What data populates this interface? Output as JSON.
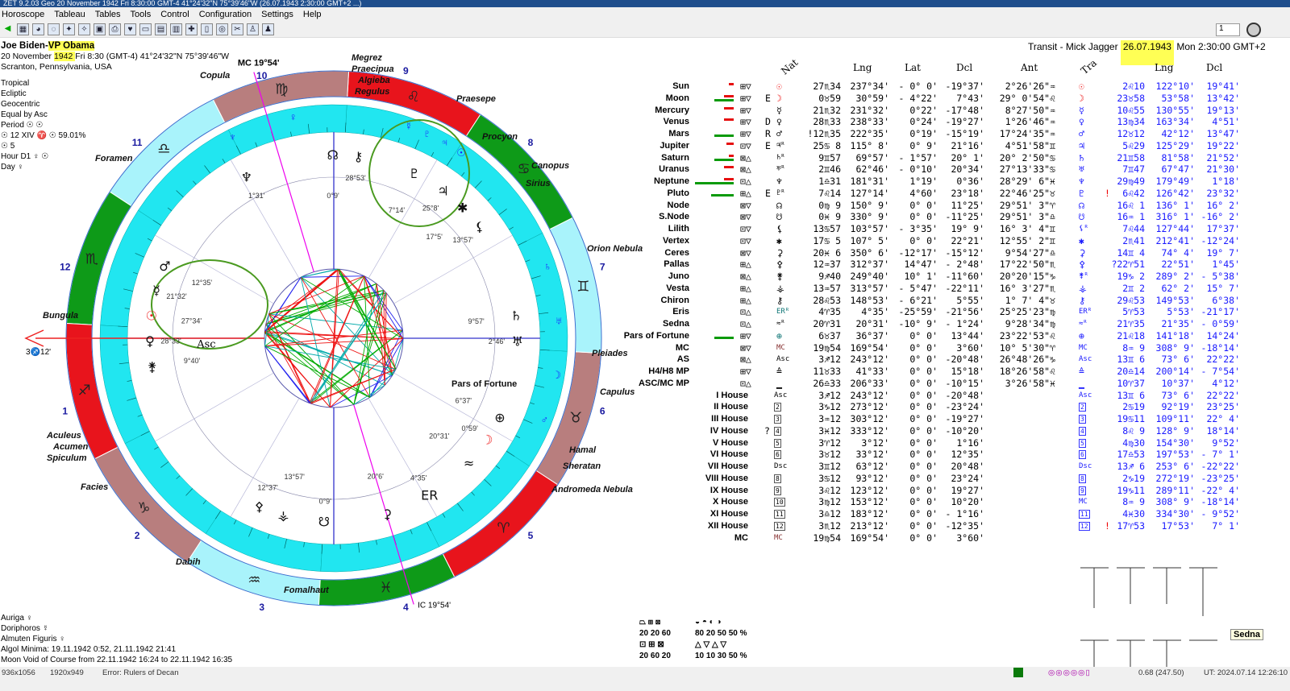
{
  "window": {
    "title": "ZET 9.2.03 Geo  20 November 1942 Fri  8:30:00 GMT-4 41°24'32\"N 75°39'46\"W  (26.07.1943  2:30:00 GMT+2 ...)"
  },
  "menu": [
    "Horoscope",
    "Tableau",
    "Tables",
    "Tools",
    "Control",
    "Configuration",
    "Settings",
    "Help"
  ],
  "toolbar_icons": [
    "back-icon",
    "table-icon",
    "globe-icon",
    "wheel-icon",
    "cosmos-icon",
    "stars-icon",
    "map-icon",
    "print-icon",
    "heart-icon",
    "window-icon",
    "grid-icon",
    "chart-icon",
    "transit-icon",
    "notes-icon",
    "aspect-icon",
    "tools-icon",
    "person-icon",
    "run-icon"
  ],
  "toolbar_right": {
    "spin_value": "1"
  },
  "natal": {
    "name_a": "Joe Biden-",
    "name_b": "VP Obama",
    "date_a": "20 November ",
    "date_b": "1942 ",
    "date_rest": " Fri   8:30 (GMT-4) 41°24'32\"N  75°39'46\"W",
    "place": "Scranton, Pennsylvania, USA"
  },
  "settings": [
    "Tropical",
    "Ecliptic",
    "Geocentric",
    "Equal by Asc",
    "Period ☉ ☉",
    "☉  12 XIV ♈ ☉ 59.01%",
    "☉  5",
    "Hour D1 ♀ ☉",
    "Day ♀"
  ],
  "transit": {
    "label": "Transit - Mick Jagger ",
    "date": "26.07.1943",
    "rest": "  Mon  2:30:00 GMT+2"
  },
  "columns": {
    "nat": "Nat",
    "lng": "Lng",
    "lat": "Lat",
    "dcl": "Dcl",
    "ant": "Ant",
    "tra": "Tra",
    "tlng": "Lng",
    "tdcl": "Dcl"
  },
  "colors": {
    "fire": "#e8141c",
    "earth": "#b87e7e",
    "air": "#a9f3fb",
    "water": "#0e9a18",
    "cyan_ring": "#21e6f0",
    "transit_text": "#1a1aff"
  },
  "signs": [
    "♈",
    "♉",
    "♊",
    "♋",
    "♌",
    "♍",
    "♎",
    "♏",
    "♐",
    "♑",
    "♒",
    "♓"
  ],
  "rows": [
    {
      "name": "Sun",
      "bar": [
        0,
        2
      ],
      "dig": "⊞▽",
      "flag": "",
      "g": "☉",
      "pos": "27♏34",
      "lng": "237°34'",
      "lat": "- 0° 0'",
      "dcl": "-19°37'",
      "ant": "2°26'26\"♒",
      "deg": 237.57
    },
    {
      "name": "Moon",
      "bar": [
        6,
        4
      ],
      "dig": "⊞▽",
      "flag": "E",
      "g": "☽",
      "pos": " 0♉59",
      "lng": "30°59'",
      "lat": "- 4°22'",
      "dcl": "7°43'",
      "ant": "29° 0'54\"♌",
      "deg": 30.98
    },
    {
      "name": "Mercury",
      "bar": [
        0,
        4
      ],
      "dig": "⊞▽",
      "flag": "",
      "g": "☿",
      "pos": "21♏32",
      "lng": "231°32'",
      "lat": "0°22'",
      "dcl": "-17°48'",
      "ant": "8°27'50\"♒",
      "deg": 231.53
    },
    {
      "name": "Venus",
      "bar": [
        0,
        4
      ],
      "dig": "⊞▽",
      "flag": "D",
      "g": "♀",
      "pos": "28♏33",
      "lng": "238°33'",
      "lat": "0°24'",
      "dcl": "-19°27'",
      "ant": "1°26'46\"♒",
      "deg": 238.55
    },
    {
      "name": "Mars",
      "bar": [
        6,
        0
      ],
      "dig": "⊞▽",
      "flag": "R",
      "g": "♂",
      "pos": "!12♏35",
      "lng": "222°35'",
      "lat": "0°19'",
      "dcl": "-15°19'",
      "ant": "17°24'35\"♒",
      "deg": 222.58
    },
    {
      "name": "Jupiter",
      "bar": [
        0,
        3
      ],
      "dig": "⊡▽",
      "flag": "E",
      "g": "♃ᴿ",
      "pos": "25♋ 8",
      "lng": "115° 8'",
      "lat": "0° 9'",
      "dcl": "21°16'",
      "ant": "4°51'58\"♊",
      "deg": 115.13
    },
    {
      "name": "Saturn",
      "bar": [
        6,
        2
      ],
      "dig": "⊠△",
      "flag": "",
      "g": "♄ᴿ",
      "pos": " 9♊57",
      "lng": "69°57'",
      "lat": "- 1°57'",
      "dcl": "20° 1'",
      "ant": "20° 2'50\"♋",
      "deg": 69.95
    },
    {
      "name": "Uranus",
      "bar": [
        0,
        4
      ],
      "dig": "⊠△",
      "flag": "",
      "g": "♅ᴿ",
      "pos": " 2♊46",
      "lng": "62°46'",
      "lat": "- 0°10'",
      "dcl": "20°34'",
      "ant": "27°13'33\"♋",
      "deg": 62.77
    },
    {
      "name": "Neptune",
      "bar": [
        12,
        4
      ],
      "dig": "⊡△",
      "flag": "",
      "g": "♆",
      "pos": " 1♎31",
      "lng": "181°31'",
      "lat": "1°19'",
      "dcl": "0°36'",
      "ant": "28°29' 6\"♓",
      "deg": 181.52
    },
    {
      "name": "Pluto",
      "bar": [
        7,
        0
      ],
      "dig": "⊞△",
      "flag": "E",
      "g": "♇ᴿ",
      "pos": " 7♌14",
      "lng": "127°14'",
      "lat": "4°60'",
      "dcl": "23°18'",
      "ant": "22°46'25\"♉",
      "deg": 127.23
    },
    {
      "name": "Node",
      "bar": [
        0,
        0
      ],
      "dig": "⊠▽",
      "flag": "",
      "g": "☊",
      "pos": " 0♍ 9",
      "lng": "150° 9'",
      "lat": "0° 0'",
      "dcl": "11°25'",
      "ant": "29°51' 3\"♈",
      "deg": 150.15
    },
    {
      "name": "S.Node",
      "bar": [
        0,
        0
      ],
      "dig": "⊠▽",
      "flag": "",
      "g": "☋",
      "pos": " 0♓ 9",
      "lng": "330° 9'",
      "lat": "0° 0'",
      "dcl": "-11°25'",
      "ant": "29°51' 3\"♎",
      "deg": 330.15
    },
    {
      "name": "Lilith",
      "bar": [
        0,
        0
      ],
      "dig": "⊡▽",
      "flag": "",
      "g": "⚸",
      "pos": "13♋57",
      "lng": "103°57'",
      "lat": "- 3°35'",
      "dcl": "19° 9'",
      "ant": "16° 3' 4\"♊",
      "deg": 103.95
    },
    {
      "name": "Vertex",
      "bar": [
        0,
        0
      ],
      "dig": "⊡▽",
      "flag": "",
      "g": "✱",
      "pos": "17♋ 5",
      "lng": "107° 5'",
      "lat": "0° 0'",
      "dcl": "22°21'",
      "ant": "12°55' 2\"♊",
      "deg": 107.08
    },
    {
      "name": "Ceres",
      "bar": [
        0,
        0
      ],
      "dig": "⊠▽",
      "flag": "",
      "g": "⚳",
      "pos": "20♓ 6",
      "lng": "350° 6'",
      "lat": "-12°17'",
      "dcl": "-15°12'",
      "ant": "9°54'27\"♎",
      "deg": 350.1
    },
    {
      "name": "Pallas",
      "bar": [
        0,
        0
      ],
      "dig": "⊞△",
      "flag": "",
      "g": "⚴",
      "pos": "12♒37",
      "lng": "312°37'",
      "lat": "14°47'",
      "dcl": "- 2°48'",
      "ant": "17°22'50\"♏",
      "deg": 312.62
    },
    {
      "name": "Juno",
      "bar": [
        0,
        0
      ],
      "dig": "⊠△",
      "flag": "",
      "g": "⚵",
      "pos": " 9♐40",
      "lng": "249°40'",
      "lat": "10° 1'",
      "dcl": "-11°60'",
      "ant": "20°20'15\"♑",
      "deg": 249.67
    },
    {
      "name": "Vesta",
      "bar": [
        0,
        0
      ],
      "dig": "⊞△",
      "flag": "",
      "g": "⚶",
      "pos": "13♒57",
      "lng": "313°57'",
      "lat": "- 5°47'",
      "dcl": "-22°11'",
      "ant": "16° 3'27\"♏",
      "deg": 313.95
    },
    {
      "name": "Chiron",
      "bar": [
        0,
        0
      ],
      "dig": "⊞△",
      "flag": "",
      "g": "⚷",
      "pos": "28♌53",
      "lng": "148°53'",
      "lat": "- 6°21'",
      "dcl": "5°55'",
      "ant": "1° 7' 4\"♉",
      "deg": 148.88
    },
    {
      "name": "Eris",
      "bar": [
        0,
        0
      ],
      "dig": "⊡△",
      "flag": "",
      "g": "ERᴿ",
      "pos": " 4♈35",
      "lng": "4°35'",
      "lat": "-25°59'",
      "dcl": "-21°56'",
      "ant": "25°25'23\"♍",
      "deg": 4.58
    },
    {
      "name": "Sedna",
      "bar": [
        0,
        0
      ],
      "dig": "⊡△",
      "flag": "",
      "g": "≈ᴿ",
      "pos": "20♈31",
      "lng": "20°31'",
      "lat": "-10° 9'",
      "dcl": "- 1°24'",
      "ant": "9°28'34\"♍",
      "deg": 20.52
    },
    {
      "name": "Pars of Fortune",
      "bar": [
        6,
        0
      ],
      "dig": "⊞▽",
      "flag": "",
      "g": "⊕",
      "pos": " 6♉37",
      "lng": "36°37'",
      "lat": "0° 0'",
      "dcl": "13°44'",
      "ant": "23°22'53\"♌",
      "deg": 36.62
    },
    {
      "name": "MC",
      "bar": [
        0,
        0
      ],
      "dig": "⊠▽",
      "flag": "",
      "g": "MC",
      "pos": "19♍54",
      "lng": "169°54'",
      "lat": "0° 0'",
      "dcl": "3°60'",
      "ant": "10° 5'30\"♈"
    },
    {
      "name": "AS",
      "bar": [
        0,
        0
      ],
      "dig": "⊠△",
      "flag": "",
      "g": "Asc",
      "pos": " 3♐12",
      "lng": "243°12'",
      "lat": "0° 0'",
      "dcl": "-20°48'",
      "ant": "26°48'26\"♑"
    },
    {
      "name": "H4/H8 MP",
      "bar": [
        0,
        0
      ],
      "dig": "⊞▽",
      "flag": "",
      "g": "≙",
      "pos": "11♉33",
      "lng": "41°33'",
      "lat": "0° 0'",
      "dcl": "15°18'",
      "ant": "18°26'58\"♌"
    },
    {
      "name": "ASC/MC MP",
      "bar": [
        0,
        0
      ],
      "dig": "⊡△",
      "flag": "",
      "g": "▁",
      "pos": "26♎33",
      "lng": "206°33'",
      "lat": "0° 0'",
      "dcl": "-10°15'",
      "ant": "3°26'58\"♓"
    },
    {
      "name": "I House",
      "g": "Asc",
      "pos": " 3♐12",
      "lng": "243°12'",
      "lat": "0° 0'",
      "dcl": "-20°48'"
    },
    {
      "name": "II House",
      "g": "2",
      "pos": " 3♑12",
      "lng": "273°12'",
      "lat": "0° 0'",
      "dcl": "-23°24'"
    },
    {
      "name": "III House",
      "g": "3",
      "pos": " 3♒12",
      "lng": "303°12'",
      "lat": "0° 0'",
      "dcl": "-19°27'"
    },
    {
      "name": "IV House",
      "g": "4",
      "flag": "?",
      "pos": " 3♓12",
      "lng": "333°12'",
      "lat": "0° 0'",
      "dcl": "-10°20'"
    },
    {
      "name": "V House",
      "g": "5",
      "pos": " 3♈12",
      "lng": "3°12'",
      "lat": "0° 0'",
      "dcl": "1°16'"
    },
    {
      "name": "VI House",
      "g": "6",
      "pos": " 3♉12",
      "lng": "33°12'",
      "lat": "0° 0'",
      "dcl": "12°35'"
    },
    {
      "name": "VII House",
      "g": "Dsc",
      "pos": " 3♊12",
      "lng": "63°12'",
      "lat": "0° 0'",
      "dcl": "20°48'"
    },
    {
      "name": "VIII House",
      "g": "8",
      "pos": " 3♋12",
      "lng": "93°12'",
      "lat": "0° 0'",
      "dcl": "23°24'"
    },
    {
      "name": "IX House",
      "g": "9",
      "pos": " 3♌12",
      "lng": "123°12'",
      "lat": "0° 0'",
      "dcl": "19°27'"
    },
    {
      "name": "X House",
      "g": "10",
      "pos": " 3♍12",
      "lng": "153°12'",
      "lat": "0° 0'",
      "dcl": "10°20'"
    },
    {
      "name": "XI House",
      "g": "11",
      "pos": " 3♎12",
      "lng": "183°12'",
      "lat": "0° 0'",
      "dcl": "- 1°16'"
    },
    {
      "name": "XII House",
      "g": "12",
      "pos": " 3♏12",
      "lng": "213°12'",
      "lat": "0° 0'",
      "dcl": "-12°35'"
    },
    {
      "name": "MC",
      "g": "MC",
      "pos": "19♍54",
      "lng": "169°54'",
      "lat": "0° 0'",
      "dcl": "3°60'"
    }
  ],
  "transit_rows": [
    {
      "g": "☉",
      "pos": " 2♌10",
      "lng": "122°10'",
      "dcl": "19°41'",
      "deg": 122.17
    },
    {
      "g": "☽",
      "pos": "23♉58",
      "lng": "53°58'",
      "dcl": "13°42'",
      "deg": 53.97
    },
    {
      "g": "☿",
      "pos": "10♌55",
      "lng": "130°55'",
      "dcl": "19°13'",
      "deg": 130.92
    },
    {
      "g": "♀",
      "pos": "13♍34",
      "lng": "163°34'",
      "dcl": "4°51'",
      "deg": 163.57
    },
    {
      "g": "♂",
      "pos": "12♉12",
      "lng": "42°12'",
      "dcl": "13°47'",
      "deg": 42.2
    },
    {
      "g": "♃",
      "pos": " 5♌29",
      "lng": "125°29'",
      "dcl": "19°22'",
      "deg": 125.48
    },
    {
      "g": "♄",
      "pos": "21♊58",
      "lng": "81°58'",
      "dcl": "21°52'",
      "deg": 81.97
    },
    {
      "g": "♅",
      "pos": " 7♊47",
      "lng": "67°47'",
      "dcl": "21°30'",
      "deg": 67.78
    },
    {
      "g": "♆",
      "pos": "29♍49",
      "lng": "179°49'",
      "dcl": "1°18'",
      "deg": 179.82
    },
    {
      "g": "♇",
      "mark": "!",
      "pos": " 6♌42",
      "lng": "126°42'",
      "dcl": "23°32'",
      "deg": 126.7
    },
    {
      "g": "☊",
      "pos": "16♌ 1",
      "lng": "136° 1'",
      "dcl": "16° 2'"
    },
    {
      "g": "☋",
      "pos": "16♒ 1",
      "lng": "316° 1'",
      "dcl": "-16° 2'"
    },
    {
      "g": "⚸ᴿ",
      "pos": " 7♌44",
      "lng": "127°44'",
      "dcl": "17°37'"
    },
    {
      "g": "✱",
      "pos": " 2♏41",
      "lng": "212°41'",
      "dcl": "-12°24'"
    },
    {
      "g": "⚳",
      "pos": "14♊ 4",
      "lng": "74° 4'",
      "dcl": "19° 7'"
    },
    {
      "g": "⚴",
      "pos": "?22♈51",
      "lng": "22°51'",
      "dcl": "1°45'"
    },
    {
      "g": "⚵ᴿ",
      "pos": "19♑ 2",
      "lng": "289° 2'",
      "dcl": "- 5°38'"
    },
    {
      "g": "⚶",
      "pos": " 2♊ 2",
      "lng": "62° 2'",
      "dcl": "15° 7'"
    },
    {
      "g": "⚷",
      "pos": "29♌53",
      "lng": "149°53'",
      "dcl": "6°38'"
    },
    {
      "g": "ERᴿ",
      "pos": " 5♈53",
      "lng": "5°53'",
      "dcl": "-21°17'"
    },
    {
      "g": "≈ᴿ",
      "pos": "21♈35",
      "lng": "21°35'",
      "dcl": "- 0°59'"
    },
    {
      "g": "⊕",
      "pos": "21♌18",
      "lng": "141°18'",
      "dcl": "14°24'"
    },
    {
      "g": "MC",
      "pos": " 8♒ 9",
      "lng": "308° 9'",
      "dcl": "-18°14'"
    },
    {
      "g": "Asc",
      "pos": "13♊ 6",
      "lng": "73° 6'",
      "dcl": "22°22'"
    },
    {
      "g": "≙",
      "pos": "20♎14",
      "lng": "200°14'",
      "dcl": "- 7°54'"
    },
    {
      "g": "▁",
      "pos": "10♈37",
      "lng": "10°37'",
      "dcl": "4°12'"
    },
    {
      "g": "Asc",
      "pos": "13♊ 6",
      "lng": "73° 6'",
      "dcl": "22°22'"
    },
    {
      "g": "2",
      "pos": " 2♋19",
      "lng": "92°19'",
      "dcl": "23°25'"
    },
    {
      "g": "3",
      "pos": "19♋11",
      "lng": "109°11'",
      "dcl": "22° 4'"
    },
    {
      "g": "4",
      "pos": " 8♌ 9",
      "lng": "128° 9'",
      "dcl": "18°14'"
    },
    {
      "g": "5",
      "pos": " 4♍30",
      "lng": "154°30'",
      "dcl": "9°52'"
    },
    {
      "g": "6",
      "pos": "17♎53",
      "lng": "197°53'",
      "dcl": "- 7° 1'"
    },
    {
      "g": "Dsc",
      "pos": "13♐ 6",
      "lng": "253° 6'",
      "dcl": "-22°22'"
    },
    {
      "g": "8",
      "pos": " 2♑19",
      "lng": "272°19'",
      "dcl": "-23°25'"
    },
    {
      "g": "9",
      "pos": "19♑11",
      "lng": "289°11'",
      "dcl": "-22° 4'"
    },
    {
      "g": "MC",
      "pos": " 8♒ 9",
      "lng": "308° 9'",
      "dcl": "-18°14'"
    },
    {
      "g": "11",
      "pos": " 4♓30",
      "lng": "334°30'",
      "dcl": "- 9°52'"
    },
    {
      "g": "12",
      "mark": "!",
      "pos": "17♈53",
      "lng": "17°53'",
      "dcl": "7° 1'"
    }
  ],
  "wheel": {
    "asc_deg": 243.2,
    "mc_label": "MC 19°54'",
    "ic_label": "IC 19°54'",
    "asc_label": "Asc",
    "asc_deg_label": "3♐12'",
    "stars": [
      "Megrez",
      "Praecipua",
      "Algieba",
      "Regulus",
      "Praesepe",
      "Procyon",
      "Canopus",
      "Sirius",
      "Orion Nebula",
      "Pleiades",
      "Capulus",
      "Hamal",
      "Sheratan",
      "Andromeda Nebula",
      "Fomalhaut",
      "Dabih",
      "Facies",
      "Spiculum",
      "Acumen",
      "Aculeus",
      "Bungula",
      "Foramen",
      "Copula",
      "Pars of Fortune"
    ]
  },
  "footer": {
    "lines": [
      "Auriga  ♀",
      "Doriphoros  ☿",
      "Almuten Figuris  ♀",
      "Algol Minima: 19.11.1942  0:52,  21.11.1942 21:41",
      "Moon Void of Course from 22.11.1942 16:24 to 22.11.1942 16:35"
    ],
    "stats": {
      "a_icons": "⏢ ⊞ ⊠",
      "a_vals": "20 20 60",
      "b_icons": "◒ ◓ ◐ ◑",
      "b_vals": "80 20 50 50 %",
      "c_icons": "⊡ ⊞ ⊠",
      "c_vals": "20 60 20",
      "d_icons": "△ ▽ △ ▽",
      "d_vals": "10 10 30 50 %"
    }
  },
  "tooltip": "Sedna",
  "status": {
    "s1": "936x1056",
    "s2": "1920x949",
    "s3": "Error: Rulers of Decan",
    "zoom": "0.68 (247.50)",
    "ut": "UT: 2024.07.14 12:26:10"
  }
}
